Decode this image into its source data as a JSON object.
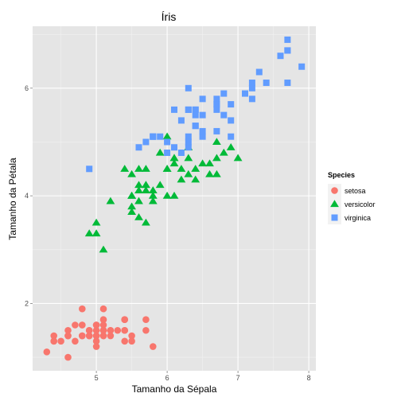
{
  "chart_data": {
    "type": "scatter",
    "title": "Íris",
    "xlabel": "Tamanho da Sépala",
    "ylabel": "Tamanho da Pétala",
    "xlim": [
      4.1,
      8.1
    ],
    "ylim": [
      0.75,
      7.15
    ],
    "x_ticks": [
      5,
      6,
      7,
      8
    ],
    "y_ticks": [
      2,
      4,
      6
    ],
    "x_tick_labels": [
      "5",
      "6",
      "7",
      "8"
    ],
    "y_tick_labels": [
      "2",
      "4",
      "6"
    ],
    "grid": true,
    "legend": {
      "title": "Species",
      "position": "right",
      "entries": [
        {
          "label": "setosa",
          "shape": "circle",
          "color": "#F8766D"
        },
        {
          "label": "versicolor",
          "shape": "triangle",
          "color": "#00BA38"
        },
        {
          "label": "virginica",
          "shape": "square",
          "color": "#619CFF"
        }
      ]
    },
    "series": [
      {
        "name": "setosa",
        "shape": "circle",
        "color": "#F8766D",
        "points": [
          [
            5.1,
            1.4
          ],
          [
            4.9,
            1.4
          ],
          [
            4.7,
            1.3
          ],
          [
            4.6,
            1.5
          ],
          [
            5.0,
            1.4
          ],
          [
            5.4,
            1.7
          ],
          [
            4.6,
            1.4
          ],
          [
            5.0,
            1.5
          ],
          [
            4.4,
            1.4
          ],
          [
            4.9,
            1.5
          ],
          [
            5.4,
            1.5
          ],
          [
            4.8,
            1.6
          ],
          [
            4.8,
            1.4
          ],
          [
            4.3,
            1.1
          ],
          [
            5.8,
            1.2
          ],
          [
            5.7,
            1.5
          ],
          [
            5.4,
            1.3
          ],
          [
            5.1,
            1.4
          ],
          [
            5.7,
            1.7
          ],
          [
            5.1,
            1.5
          ],
          [
            5.4,
            1.7
          ],
          [
            5.1,
            1.5
          ],
          [
            4.6,
            1.0
          ],
          [
            5.1,
            1.7
          ],
          [
            4.8,
            1.9
          ],
          [
            5.0,
            1.6
          ],
          [
            5.0,
            1.6
          ],
          [
            5.2,
            1.5
          ],
          [
            5.2,
            1.4
          ],
          [
            4.7,
            1.6
          ],
          [
            4.8,
            1.6
          ],
          [
            5.4,
            1.5
          ],
          [
            5.2,
            1.5
          ],
          [
            5.5,
            1.4
          ],
          [
            4.9,
            1.5
          ],
          [
            5.0,
            1.2
          ],
          [
            5.5,
            1.3
          ],
          [
            4.9,
            1.4
          ],
          [
            4.4,
            1.3
          ],
          [
            5.1,
            1.5
          ],
          [
            5.0,
            1.3
          ],
          [
            4.5,
            1.3
          ],
          [
            4.4,
            1.3
          ],
          [
            5.0,
            1.6
          ],
          [
            5.1,
            1.9
          ],
          [
            4.8,
            1.4
          ],
          [
            5.1,
            1.6
          ],
          [
            4.6,
            1.4
          ],
          [
            5.3,
            1.5
          ],
          [
            5.0,
            1.4
          ]
        ]
      },
      {
        "name": "versicolor",
        "shape": "triangle",
        "color": "#00BA38",
        "points": [
          [
            7.0,
            4.7
          ],
          [
            6.4,
            4.5
          ],
          [
            6.9,
            4.9
          ],
          [
            5.5,
            4.0
          ],
          [
            6.5,
            4.6
          ],
          [
            5.7,
            4.5
          ],
          [
            6.3,
            4.7
          ],
          [
            4.9,
            3.3
          ],
          [
            6.6,
            4.6
          ],
          [
            5.2,
            3.9
          ],
          [
            5.0,
            3.5
          ],
          [
            5.9,
            4.2
          ],
          [
            6.0,
            4.0
          ],
          [
            6.1,
            4.7
          ],
          [
            5.6,
            3.6
          ],
          [
            6.7,
            4.4
          ],
          [
            5.6,
            4.5
          ],
          [
            5.8,
            4.1
          ],
          [
            6.2,
            4.5
          ],
          [
            5.6,
            3.9
          ],
          [
            5.9,
            4.8
          ],
          [
            6.1,
            4.0
          ],
          [
            6.3,
            4.9
          ],
          [
            6.1,
            4.7
          ],
          [
            6.4,
            4.3
          ],
          [
            6.6,
            4.4
          ],
          [
            6.8,
            4.8
          ],
          [
            6.7,
            5.0
          ],
          [
            6.0,
            4.5
          ],
          [
            5.7,
            3.5
          ],
          [
            5.5,
            3.8
          ],
          [
            5.5,
            3.7
          ],
          [
            5.8,
            3.9
          ],
          [
            6.0,
            5.1
          ],
          [
            5.4,
            4.5
          ],
          [
            6.0,
            4.5
          ],
          [
            6.7,
            4.7
          ],
          [
            6.3,
            4.4
          ],
          [
            5.6,
            4.1
          ],
          [
            5.5,
            4.0
          ],
          [
            5.5,
            4.4
          ],
          [
            6.1,
            4.6
          ],
          [
            5.8,
            4.0
          ],
          [
            5.0,
            3.3
          ],
          [
            5.6,
            4.2
          ],
          [
            5.7,
            4.2
          ],
          [
            5.7,
            4.2
          ],
          [
            6.2,
            4.3
          ],
          [
            5.1,
            3.0
          ],
          [
            5.7,
            4.1
          ]
        ]
      },
      {
        "name": "virginica",
        "shape": "square",
        "color": "#619CFF",
        "points": [
          [
            6.3,
            6.0
          ],
          [
            5.8,
            5.1
          ],
          [
            7.1,
            5.9
          ],
          [
            6.3,
            5.6
          ],
          [
            6.5,
            5.8
          ],
          [
            7.6,
            6.6
          ],
          [
            4.9,
            4.5
          ],
          [
            7.3,
            6.3
          ],
          [
            6.7,
            5.8
          ],
          [
            7.2,
            6.1
          ],
          [
            6.5,
            5.1
          ],
          [
            6.4,
            5.3
          ],
          [
            6.8,
            5.5
          ],
          [
            5.7,
            5.0
          ],
          [
            5.8,
            5.1
          ],
          [
            6.4,
            5.3
          ],
          [
            6.5,
            5.5
          ],
          [
            7.7,
            6.7
          ],
          [
            7.7,
            6.9
          ],
          [
            6.0,
            5.0
          ],
          [
            6.9,
            5.7
          ],
          [
            5.6,
            4.9
          ],
          [
            7.7,
            6.7
          ],
          [
            6.3,
            4.9
          ],
          [
            6.7,
            5.7
          ],
          [
            7.2,
            6.0
          ],
          [
            6.2,
            4.8
          ],
          [
            6.1,
            4.9
          ],
          [
            6.4,
            5.6
          ],
          [
            7.2,
            5.8
          ],
          [
            7.4,
            6.1
          ],
          [
            7.9,
            6.4
          ],
          [
            6.4,
            5.6
          ],
          [
            6.3,
            5.1
          ],
          [
            6.1,
            5.6
          ],
          [
            7.7,
            6.1
          ],
          [
            6.3,
            5.6
          ],
          [
            6.4,
            5.5
          ],
          [
            6.0,
            4.8
          ],
          [
            6.9,
            5.4
          ],
          [
            6.7,
            5.6
          ],
          [
            6.9,
            5.1
          ],
          [
            5.8,
            5.1
          ],
          [
            6.8,
            5.9
          ],
          [
            6.7,
            5.7
          ],
          [
            6.7,
            5.2
          ],
          [
            6.3,
            5.0
          ],
          [
            6.5,
            5.2
          ],
          [
            6.2,
            5.4
          ],
          [
            5.9,
            5.1
          ]
        ]
      }
    ]
  }
}
